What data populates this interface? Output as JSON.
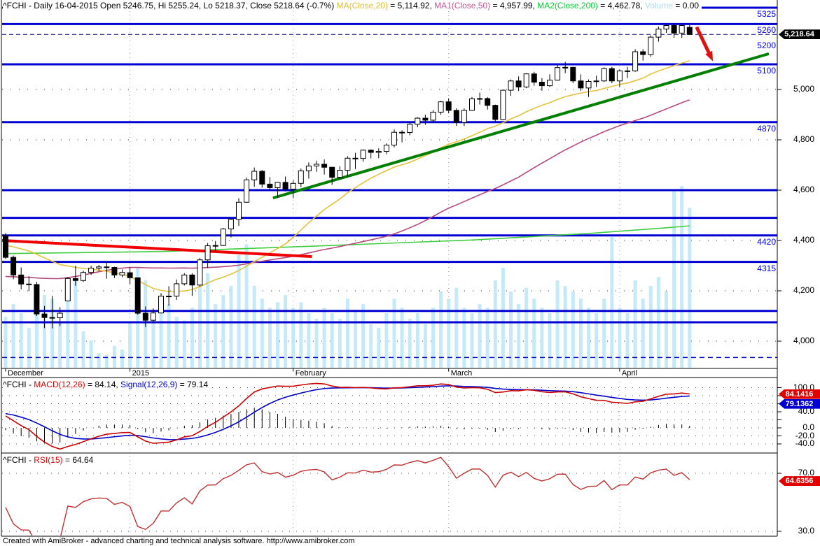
{
  "title_bar": {
    "segments": [
      {
        "text": "^FCHI - Daily 16-04-2015 Open 5246.75, Hi 5255.24, Lo 5218.37, Close 5218.64 (-0.7%) ",
        "color": "#000000"
      },
      {
        "text": "MA(Close,20)",
        "color": "#DDBE2E"
      },
      {
        "text": " = 5,114.92, ",
        "color": "#000000"
      },
      {
        "text": "MA1(Close,50)",
        "color": "#C75490"
      },
      {
        "text": " = 4,957.99, ",
        "color": "#000000"
      },
      {
        "text": "MA2(Close,200)",
        "color": "#00CC33"
      },
      {
        "text": " = 4,462.78, ",
        "color": "#000000"
      },
      {
        "text": "Volume",
        "color": "#A8DCF0"
      },
      {
        "text": " = 0.00",
        "color": "#000000"
      }
    ]
  },
  "footer": {
    "credit": "Created with AmiBroker - advanced charting and technical analysis software. http://www.amibroker.com"
  },
  "colors": {
    "level_line": "#0000D0",
    "level_label": "#0000E8",
    "grid_dot": "#333333",
    "volume": "#C4EAF9",
    "ma20": "#E3C23C",
    "ma50": "#B5497E",
    "ma200": "#3FCC3F",
    "trend_green": "#007F00",
    "trend_red": "#EE0000",
    "arrow": "#E01010",
    "macd_line": "#CC0000",
    "signal_line": "#0000C8",
    "rsi_line": "#C03030",
    "badge_red": "#E00000",
    "badge_blue": "#0000D0",
    "badge_black": "#000000",
    "last_price_dash": "#000080",
    "candle": "#000000"
  },
  "chart_data": {
    "type": "candlestick",
    "symbol": "^FCHI",
    "interval": "Daily",
    "last_date": "16-04-2015",
    "ohlc_last": {
      "open": 5246.75,
      "high": 5255.24,
      "low": 5218.37,
      "close": 5218.64,
      "change_pct": "-0.7%"
    },
    "price_panel": {
      "bars": [
        [
          4419,
          4429,
          4326,
          4333
        ],
        [
          4333,
          4340,
          4246,
          4263
        ],
        [
          4263,
          4293,
          4206,
          4227
        ],
        [
          4227,
          4258,
          4199,
          4225
        ],
        [
          4225,
          4236,
          4100,
          4108
        ],
        [
          4108,
          4140,
          4052,
          4094
        ],
        [
          4094,
          4180,
          4051,
          4093
        ],
        [
          4093,
          4135,
          4060,
          4111
        ],
        [
          4160,
          4255,
          4158,
          4249
        ],
        [
          4249,
          4300,
          4220,
          4241
        ],
        [
          4241,
          4280,
          4235,
          4273
        ],
        [
          4273,
          4300,
          4263,
          4290
        ],
        [
          4290,
          4303,
          4280,
          4295
        ],
        [
          4295,
          4315,
          4248,
          4293
        ],
        [
          4293,
          4296,
          4251,
          4263
        ],
        [
          4263,
          4285,
          4254,
          4273
        ],
        [
          4272,
          4294,
          4226,
          4252
        ],
        [
          4252,
          4253,
          4105,
          4111
        ],
        [
          4111,
          4138,
          4056,
          4083
        ],
        [
          4083,
          4130,
          4073,
          4112
        ],
        [
          4112,
          4191,
          4110,
          4179
        ],
        [
          4179,
          4218,
          4141,
          4179
        ],
        [
          4179,
          4245,
          4164,
          4228
        ],
        [
          4228,
          4270,
          4221,
          4263
        ],
        [
          4263,
          4270,
          4180,
          4223
        ],
        [
          4223,
          4331,
          4216,
          4323
        ],
        [
          4323,
          4390,
          4291,
          4379
        ],
        [
          4379,
          4398,
          4357,
          4380
        ],
        [
          4380,
          4450,
          4378,
          4446
        ],
        [
          4446,
          4490,
          4412,
          4484
        ],
        [
          4484,
          4568,
          4458,
          4552
        ],
        [
          4552,
          4650,
          4550,
          4641
        ],
        [
          4641,
          4690,
          4613,
          4675
        ],
        [
          4675,
          4680,
          4610,
          4624
        ],
        [
          4624,
          4652,
          4602,
          4610
        ],
        [
          4610,
          4633,
          4570,
          4631
        ],
        [
          4631,
          4654,
          4595,
          4604
        ],
        [
          4604,
          4639,
          4568,
          4627
        ],
        [
          4627,
          4686,
          4612,
          4677
        ],
        [
          4677,
          4710,
          4646,
          4696
        ],
        [
          4696,
          4717,
          4673,
          4703
        ],
        [
          4703,
          4722,
          4662,
          4691
        ],
        [
          4691,
          4692,
          4621,
          4651
        ],
        [
          4651,
          4695,
          4644,
          4679
        ],
        [
          4679,
          4735,
          4653,
          4727
        ],
        [
          4727,
          4748,
          4684,
          4726
        ],
        [
          4726,
          4762,
          4713,
          4759
        ],
        [
          4759,
          4762,
          4726,
          4750
        ],
        [
          4750,
          4766,
          4727,
          4754
        ],
        [
          4754,
          4786,
          4743,
          4779
        ],
        [
          4779,
          4841,
          4770,
          4830
        ],
        [
          4830,
          4838,
          4790,
          4829
        ],
        [
          4829,
          4870,
          4818,
          4862
        ],
        [
          4862,
          4890,
          4850,
          4886
        ],
        [
          4886,
          4900,
          4860,
          4878
        ],
        [
          4878,
          4918,
          4870,
          4910
        ],
        [
          4910,
          4955,
          4900,
          4951
        ],
        [
          4951,
          4965,
          4905,
          4917
        ],
        [
          4917,
          4925,
          4855,
          4869
        ],
        [
          4869,
          4925,
          4855,
          4917
        ],
        [
          4917,
          4970,
          4915,
          4963
        ],
        [
          4963,
          4987,
          4940,
          4964
        ],
        [
          4964,
          4970,
          4920,
          4937
        ],
        [
          4937,
          4940,
          4871,
          4881
        ],
        [
          4881,
          5000,
          4880,
          4997
        ],
        [
          4997,
          5040,
          4975,
          5034
        ],
        [
          5034,
          5052,
          4994,
          5010
        ],
        [
          5010,
          5065,
          5005,
          5062
        ],
        [
          5062,
          5070,
          5015,
          5029
        ],
        [
          5029,
          5045,
          4995,
          5015
        ],
        [
          5015,
          5060,
          5010,
          5037
        ],
        [
          5037,
          5097,
          5035,
          5087
        ],
        [
          5087,
          5110,
          5065,
          5088
        ],
        [
          5088,
          5090,
          5025,
          5034
        ],
        [
          5034,
          5060,
          4995,
          5006
        ],
        [
          5006,
          5040,
          4970,
          5032
        ],
        [
          5032,
          5055,
          5010,
          5034
        ],
        [
          5034,
          5088,
          5030,
          5083
        ],
        [
          5083,
          5090,
          5025,
          5034
        ],
        [
          5034,
          5080,
          5010,
          5074
        ],
        [
          5074,
          5090,
          5045,
          5074
        ],
        [
          5074,
          5160,
          5070,
          5150
        ],
        [
          5150,
          5160,
          5115,
          5139
        ],
        [
          5139,
          5215,
          5130,
          5208
        ],
        [
          5208,
          5250,
          5190,
          5240
        ],
        [
          5240,
          5260,
          5225,
          5254
        ],
        [
          5254,
          5258,
          5205,
          5224
        ],
        [
          5224,
          5260,
          5205,
          5254
        ],
        [
          5246.75,
          5255.24,
          5218.37,
          5218.64
        ]
      ],
      "volume_rel": [
        0.28,
        0.35,
        0.3,
        0.22,
        0.45,
        0.4,
        0.38,
        0.25,
        0.42,
        0.48,
        0.2,
        0.15,
        0.08,
        0.07,
        0.12,
        0.1,
        0.25,
        0.55,
        0.48,
        0.3,
        0.32,
        0.35,
        0.28,
        0.26,
        0.33,
        0.58,
        0.52,
        0.35,
        0.4,
        0.45,
        0.62,
        0.68,
        0.45,
        0.38,
        0.33,
        0.36,
        0.4,
        0.33,
        0.36,
        0.3,
        0.27,
        0.33,
        0.3,
        0.27,
        0.38,
        0.32,
        0.35,
        0.24,
        0.22,
        0.3,
        0.38,
        0.33,
        0.27,
        0.3,
        0.24,
        0.33,
        0.42,
        0.38,
        0.44,
        0.33,
        0.3,
        0.35,
        0.33,
        0.48,
        0.55,
        0.42,
        0.35,
        0.44,
        0.38,
        0.33,
        0.3,
        0.48,
        0.45,
        0.42,
        0.38,
        0.33,
        0.3,
        0.38,
        0.72,
        0.33,
        0.3,
        0.48,
        0.38,
        0.45,
        0.5,
        0.42,
        0.98,
        1.0,
        0.88
      ],
      "prehistory_closes": [
        4460,
        4450,
        4440,
        4430,
        4420,
        4410,
        4400,
        4390,
        4380,
        4370,
        4360,
        4340,
        4300,
        4260,
        4220,
        4180,
        4140,
        4100,
        4060,
        4020,
        3990,
        3960,
        3970,
        4000,
        4040,
        4080,
        4100,
        4120,
        4140,
        4160,
        4180,
        4200,
        4220,
        4240,
        4260,
        4280,
        4300,
        4320,
        4340,
        4360,
        4370,
        4380,
        4390,
        4385,
        4380,
        4375,
        4370,
        4365,
        4360,
        4355,
        4350,
        4360,
        4370,
        4380,
        4390,
        4400,
        4410,
        4420,
        4419,
        4419
      ],
      "month_ticks": [
        {
          "label": "December",
          "bar": 0
        },
        {
          "label": "2015",
          "bar": 16
        },
        {
          "label": "February",
          "bar": 37
        },
        {
          "label": "March",
          "bar": 57
        },
        {
          "label": "April",
          "bar": 79
        }
      ],
      "y_axis_gridlines": [
        {
          "price": 5000,
          "label": "5,000"
        },
        {
          "price": 4800,
          "label": "4,800"
        },
        {
          "price": 4600,
          "label": "4,600"
        },
        {
          "price": 4400,
          "label": "4,400"
        },
        {
          "price": 4200,
          "label": "4,200"
        },
        {
          "price": 4000,
          "label": "4,000"
        }
      ],
      "levels": [
        {
          "price": 5325,
          "label": "5325",
          "style": "solid"
        },
        {
          "price": 5260,
          "label": "5260",
          "style": "solid"
        },
        {
          "price": 5200,
          "label": "5200",
          "style": "label-only"
        },
        {
          "price": 5100,
          "label": "5100",
          "style": "solid"
        },
        {
          "price": 4870,
          "label": "4870",
          "style": "solid"
        },
        {
          "price": 4600,
          "label": "",
          "style": "solid"
        },
        {
          "price": 4490,
          "label": "",
          "style": "solid"
        },
        {
          "price": 4420,
          "label": "4420",
          "style": "solid"
        },
        {
          "price": 4315,
          "label": "4315",
          "style": "solid"
        },
        {
          "price": 4120,
          "label": "",
          "style": "solid"
        },
        {
          "price": 4075,
          "label": "",
          "style": "solid"
        },
        {
          "price": 3935,
          "label": "",
          "style": "dashed"
        }
      ],
      "last_price_marker": {
        "value": 5218.64,
        "label": "5,218.64"
      },
      "overlays": {
        "ma20": {
          "name": "MA(Close,20)",
          "period": 20,
          "value": "5,114.92"
        },
        "ma50": {
          "name": "MA1(Close,50)",
          "period": 50,
          "value": "4,957.99"
        },
        "ma200": {
          "name": "MA2(Close,200)",
          "period": 200,
          "value": "4,462.78",
          "points": [
            [
              0,
              4348
            ],
            [
              20,
              4356
            ],
            [
              40,
              4378
            ],
            [
              60,
              4402
            ],
            [
              75,
              4428
            ],
            [
              84,
              4448
            ],
            [
              88,
              4458
            ]
          ]
        },
        "volume": {
          "name": "Volume",
          "value": "0.00"
        }
      },
      "trendlines": [
        {
          "name": "downtrend",
          "x1_bar": -0.54,
          "p1": 4400,
          "x2_bar": 39.4,
          "p2": 4336,
          "color_key": "trend_red",
          "width": 4
        },
        {
          "name": "uptrend",
          "x1_bar": 34.4,
          "p1": 4569,
          "x2_bar": 98.2,
          "p2": 5142,
          "color_key": "trend_green",
          "width": 4
        }
      ],
      "arrow": {
        "x1_bar": 88.9,
        "p1": 5248,
        "x2_bar": 91.0,
        "p2": 5112
      }
    },
    "macd_panel": {
      "title_segments": [
        {
          "text": "^FCHI - ",
          "color": "#000000"
        },
        {
          "text": "MACD(12,26)",
          "color": "#DD0000"
        },
        {
          "text": " = 84.14, ",
          "color": "#000000"
        },
        {
          "text": "Signal(12,26,9)",
          "color": "#0000CC"
        },
        {
          "text": " = 79.14",
          "color": "#000000"
        }
      ],
      "params": {
        "fast": 12,
        "slow": 26,
        "signal": 9
      },
      "axis_labels": [
        {
          "value": 100,
          "label": "100.0"
        },
        {
          "value": 40,
          "label": "40.0"
        },
        {
          "value": 0,
          "label": "0.0"
        },
        {
          "value": -20,
          "label": "-20.0"
        },
        {
          "value": -40,
          "label": "-40.0"
        }
      ],
      "gridline_values": [
        100,
        80,
        60,
        40,
        20,
        0,
        -20,
        -40
      ],
      "badges": [
        {
          "label": "84.1416",
          "value": 84.1416,
          "color_key": "badge_red"
        },
        {
          "label": "79.1362",
          "value": 79.1362,
          "color_key": "badge_blue"
        }
      ]
    },
    "rsi_panel": {
      "title_segments": [
        {
          "text": "^FCHI - ",
          "color": "#000000"
        },
        {
          "text": "RSI(15)",
          "color": "#DD0000"
        },
        {
          "text": " = 64.64",
          "color": "#000000"
        }
      ],
      "params": {
        "period": 15
      },
      "axis_labels": [
        {
          "value": 70,
          "label": "70.0"
        },
        {
          "value": 30,
          "label": "30.0"
        }
      ],
      "gridline_values": [
        70,
        30
      ],
      "badge": {
        "label": "64.6356",
        "value": 64.6356,
        "color_key": "badge_red"
      }
    }
  }
}
